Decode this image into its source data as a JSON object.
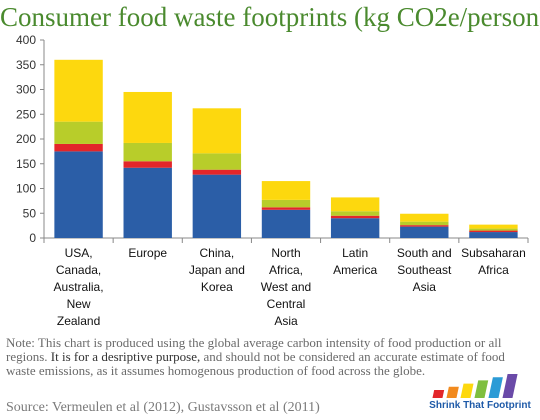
{
  "chart_data": {
    "type": "bar",
    "stacked": true,
    "title": "Consumer food waste footprints (kg CO2e/person)",
    "categories": [
      [
        "USA,",
        "Canada,",
        "Australia,",
        "New",
        "Zealand"
      ],
      [
        "Europe"
      ],
      [
        "China,",
        "Japan and",
        "Korea"
      ],
      [
        "North",
        "Africa,",
        "West and",
        "Central",
        "Asia"
      ],
      [
        "Latin",
        "America"
      ],
      [
        "South and",
        "Southeast",
        "Asia"
      ],
      [
        "Subsaharan",
        "Africa"
      ]
    ],
    "series": [
      {
        "values": [
          175,
          142,
          128,
          57,
          40,
          23,
          12
        ],
        "color": "#2b5ea7"
      },
      {
        "values": [
          15,
          13,
          10,
          5,
          5,
          3,
          3
        ],
        "color": "#e3262a"
      },
      {
        "values": [
          45,
          37,
          33,
          15,
          9,
          7,
          4
        ],
        "color": "#b8cd2a"
      },
      {
        "values": [
          125,
          103,
          91,
          38,
          28,
          16,
          8
        ],
        "color": "#fdd80e"
      }
    ],
    "ylim": [
      0,
      400
    ],
    "yticks": [
      0,
      50,
      100,
      150,
      200,
      250,
      300,
      350,
      400
    ],
    "grid": false,
    "legend": "none"
  },
  "note": {
    "part1": "Note:  This chart is produced using the global average carbon intensity of food production or all regions.  ",
    "highlight": "It is for a desriptive purpose,",
    "part2": " and should not be considered an accurate estimate of food waste emissions, as it assumes homogenous production of food across the globe."
  },
  "source": "Source:  Vermeulen et al (2012), Gustavsson et al (2011)",
  "logo": {
    "text": "Shrink That Footprint",
    "colors": [
      "#e3262a",
      "#f28a1e",
      "#fdd80e",
      "#7fbf3f",
      "#2b9bd6",
      "#6a4aa8"
    ]
  }
}
